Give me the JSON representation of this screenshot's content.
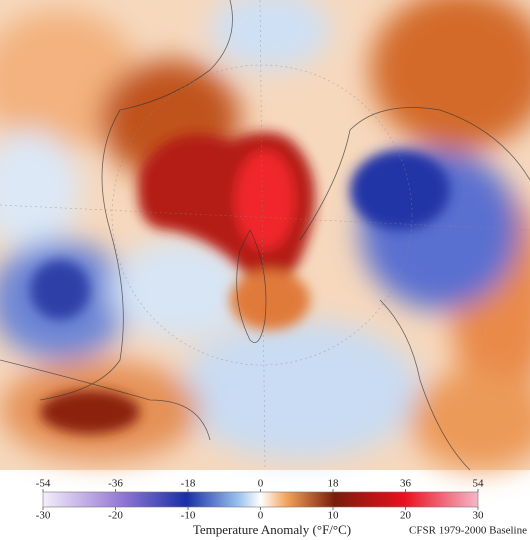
{
  "colorbar": {
    "fahrenheit_ticks": [
      -54,
      -36,
      -18,
      0,
      18,
      36,
      54
    ],
    "celsius_ticks": [
      -30,
      -20,
      -10,
      0,
      10,
      20,
      30
    ],
    "label": "Temperature Anomaly (°F/°C)"
  },
  "credit": "CFSR 1979-2000 Baseline"
}
